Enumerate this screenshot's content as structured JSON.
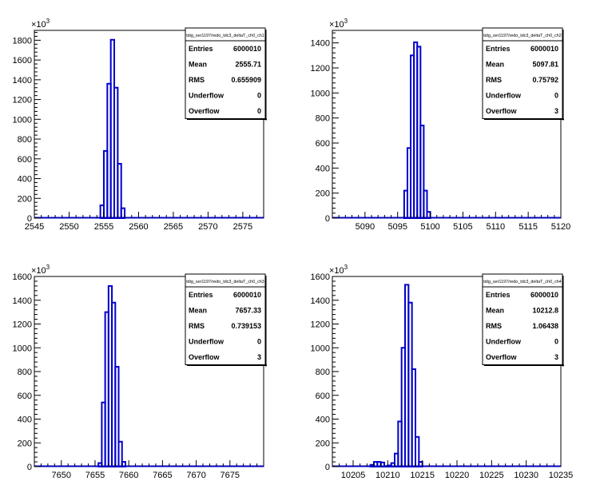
{
  "exponent_label": "10",
  "exponent_power": "3",
  "chart_data": [
    {
      "type": "histogram",
      "title": "tdig_ser1197/redo_tdc3_deltaT_ch0_ch1",
      "xlim": [
        2545,
        2578
      ],
      "x_ticks": [
        2545,
        2550,
        2555,
        2560,
        2565,
        2570,
        2575
      ],
      "ylim": [
        0,
        1900
      ],
      "y_ticks": [
        0,
        200,
        400,
        600,
        800,
        1000,
        1200,
        1400,
        1600,
        1800
      ],
      "y_multiplier": "x10^3",
      "line_color": "#0000cc",
      "bins": [
        [
          2554,
          2554.5,
          0
        ],
        [
          2554.5,
          2555,
          130
        ],
        [
          2555,
          2555.5,
          680
        ],
        [
          2555.5,
          2556,
          1360
        ],
        [
          2556,
          2556.5,
          1805
        ],
        [
          2556.5,
          2557,
          1320
        ],
        [
          2557,
          2557.5,
          550
        ],
        [
          2557.5,
          2558,
          100
        ],
        [
          2558,
          2558.5,
          0
        ]
      ],
      "stats": [
        {
          "label": "Entries",
          "value": "6000010"
        },
        {
          "label": "Mean",
          "value": "2555.71"
        },
        {
          "label": "RMS",
          "value": "0.655909"
        },
        {
          "label": "Underflow",
          "value": "0"
        },
        {
          "label": "Overflow",
          "value": "0"
        }
      ]
    },
    {
      "type": "histogram",
      "title": "tdig_ser1197/redo_tdc3_deltaT_ch0_ch2",
      "xlim": [
        5085,
        5120
      ],
      "x_ticks": [
        5090,
        5095,
        5100,
        5105,
        5110,
        5115,
        5120
      ],
      "ylim": [
        0,
        1500
      ],
      "y_ticks": [
        0,
        200,
        400,
        600,
        800,
        1000,
        1200,
        1400
      ],
      "y_multiplier": "x10^3",
      "line_color": "#0000cc",
      "bins": [
        [
          5095.5,
          5096,
          0
        ],
        [
          5096,
          5096.5,
          220
        ],
        [
          5096.5,
          5097,
          560
        ],
        [
          5097,
          5097.5,
          1300
        ],
        [
          5097.5,
          5098,
          1405
        ],
        [
          5098,
          5098.5,
          1370
        ],
        [
          5098.5,
          5099,
          740
        ],
        [
          5099,
          5099.5,
          220
        ],
        [
          5099.5,
          5100,
          50
        ],
        [
          5100,
          5100.5,
          0
        ]
      ],
      "stats": [
        {
          "label": "Entries",
          "value": "6000010"
        },
        {
          "label": "Mean",
          "value": "5097.81"
        },
        {
          "label": "RMS",
          "value": "0.75792"
        },
        {
          "label": "Underflow",
          "value": "0"
        },
        {
          "label": "Overflow",
          "value": "3"
        }
      ]
    },
    {
      "type": "histogram",
      "title": "tdig_ser1197/redo_tdc3_deltaT_ch0_ch3",
      "xlim": [
        7646,
        7680
      ],
      "x_ticks": [
        7650,
        7655,
        7660,
        7665,
        7670,
        7675
      ],
      "ylim": [
        0,
        1600
      ],
      "y_ticks": [
        0,
        200,
        400,
        600,
        800,
        1000,
        1200,
        1400,
        1600
      ],
      "y_multiplier": "x10^3",
      "line_color": "#0000cc",
      "bins": [
        [
          7655.5,
          7656,
          30
        ],
        [
          7656,
          7656.5,
          540
        ],
        [
          7656.5,
          7657,
          1300
        ],
        [
          7657,
          7657.5,
          1520
        ],
        [
          7657.5,
          7658,
          1380
        ],
        [
          7658,
          7658.5,
          840
        ],
        [
          7658.5,
          7659,
          210
        ],
        [
          7659,
          7659.5,
          40
        ],
        [
          7659.5,
          7660,
          0
        ]
      ],
      "stats": [
        {
          "label": "Entries",
          "value": "6000010"
        },
        {
          "label": "Mean",
          "value": "7657.33"
        },
        {
          "label": "RMS",
          "value": "0.739153"
        },
        {
          "label": "Underflow",
          "value": "0"
        },
        {
          "label": "Overflow",
          "value": "3"
        }
      ]
    },
    {
      "type": "histogram",
      "title": "tdig_ser1197/redo_tdc3_deltaT_ch0_ch4",
      "xlim": [
        10202,
        10235
      ],
      "x_ticks": [
        10205,
        10210,
        10215,
        10220,
        10225,
        10230,
        10235
      ],
      "ylim": [
        0,
        1600
      ],
      "y_ticks": [
        0,
        200,
        400,
        600,
        800,
        1000,
        1200,
        1400,
        1600
      ],
      "y_multiplier": "x10^3",
      "line_color": "#0000cc",
      "bins": [
        [
          10207.5,
          10208,
          15
        ],
        [
          10208,
          10208.5,
          40
        ],
        [
          10208.5,
          10209,
          40
        ],
        [
          10209,
          10209.5,
          35
        ],
        [
          10209.5,
          10210,
          5
        ],
        [
          10210,
          10210.5,
          10
        ],
        [
          10210.5,
          10211,
          30
        ],
        [
          10211,
          10211.5,
          110
        ],
        [
          10211.5,
          10212,
          380
        ],
        [
          10212,
          10212.5,
          1000
        ],
        [
          10212.5,
          10213,
          1530
        ],
        [
          10213,
          10213.5,
          1380
        ],
        [
          10213.5,
          10214,
          820
        ],
        [
          10214,
          10214.5,
          250
        ],
        [
          10214.5,
          10215,
          40
        ],
        [
          10215,
          10215.5,
          0
        ]
      ],
      "stats": [
        {
          "label": "Entries",
          "value": "6000010"
        },
        {
          "label": "Mean",
          "value": "10212.8"
        },
        {
          "label": "RMS",
          "value": "1.06438"
        },
        {
          "label": "Underflow",
          "value": "0"
        },
        {
          "label": "Overflow",
          "value": "3"
        }
      ]
    }
  ]
}
